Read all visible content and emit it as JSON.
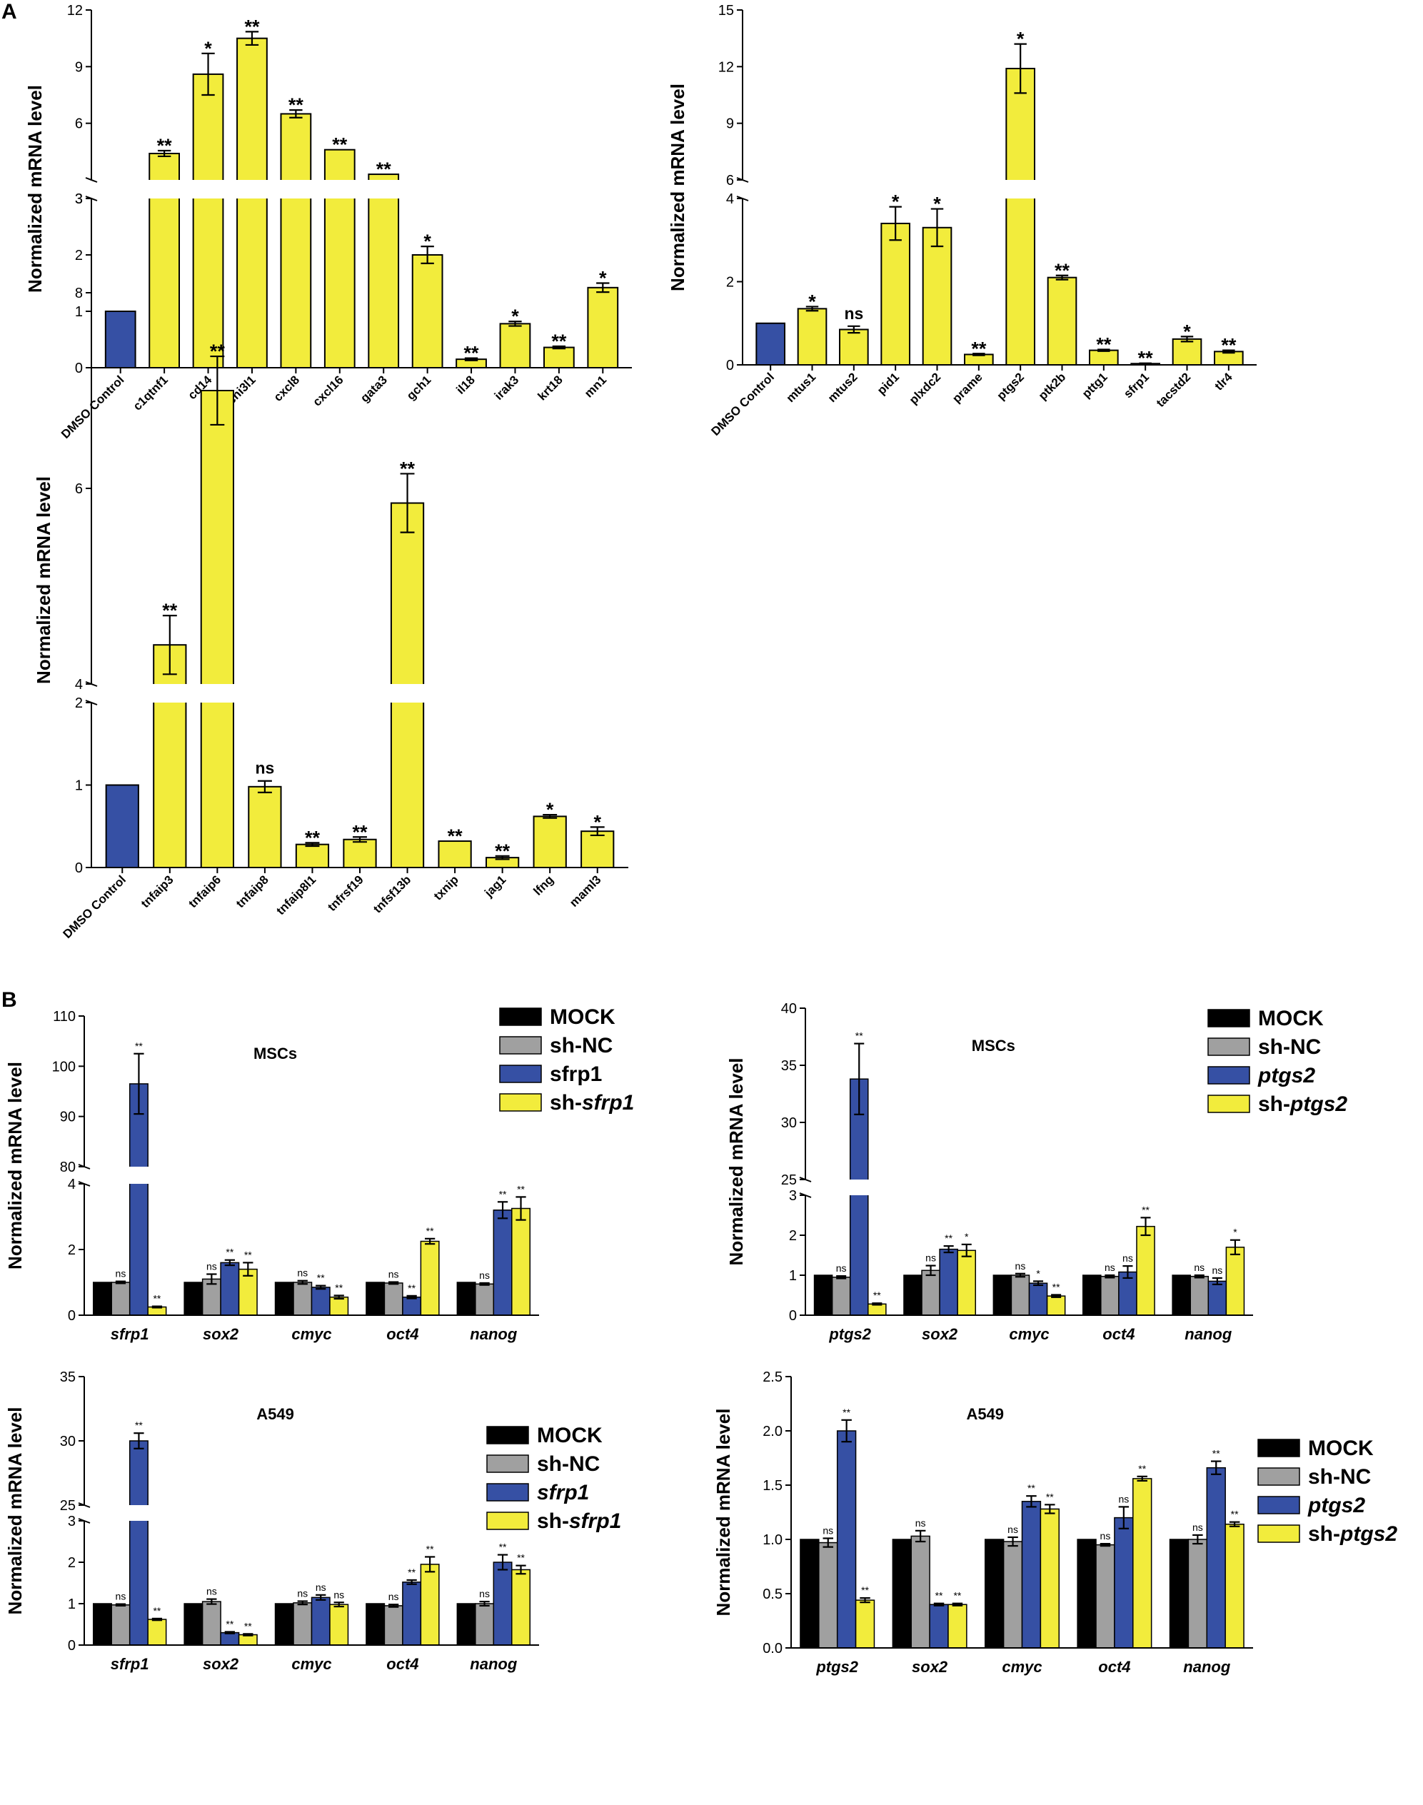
{
  "panels": {
    "A": {
      "label": "A"
    },
    "B": {
      "label": "B"
    }
  },
  "colors": {
    "control": "#3650a4",
    "treated": "#f2ec3c",
    "mock": "#000000",
    "sh_nc": "#a0a0a0",
    "overexpr": "#3650a4",
    "knockdown": "#f2ec3c"
  },
  "chart_data": [
    {
      "id": "A1",
      "type": "bar",
      "panel": "A",
      "ylabel": "Normalized mRNA level",
      "broken_axis": true,
      "lower_range": [
        0,
        3
      ],
      "upper_range": [
        3,
        12
      ],
      "lower_ticks": [
        0,
        1,
        2,
        3
      ],
      "upper_ticks": [
        3,
        6,
        9,
        12
      ],
      "categories": [
        "DMSO Control",
        "c1qtnf1",
        "cd14",
        "chi3l1",
        "cxcl8",
        "cxcl16",
        "gata3",
        "gch1",
        "il18",
        "irak3",
        "krt18",
        "mn1"
      ],
      "values": [
        1.0,
        4.4,
        8.6,
        10.5,
        6.5,
        4.6,
        3.3,
        2.0,
        0.15,
        0.78,
        0.36,
        1.42
      ],
      "errors": [
        0,
        0.15,
        1.1,
        0.35,
        0.2,
        0,
        0,
        0.15,
        0.02,
        0.04,
        0.02,
        0.08
      ],
      "significance": [
        "",
        "**",
        "*",
        "**",
        "**",
        "**",
        "**",
        "*",
        "**",
        "*",
        "**",
        "*"
      ]
    },
    {
      "id": "A2",
      "type": "bar",
      "panel": "A",
      "ylabel": "Normalized mRNA level",
      "broken_axis": true,
      "lower_range": [
        0,
        4
      ],
      "upper_range": [
        6,
        15
      ],
      "lower_ticks": [
        0,
        2,
        4
      ],
      "upper_ticks": [
        6,
        9,
        12,
        15
      ],
      "categories": [
        "DMSO Control",
        "mtus1",
        "mtus2",
        "pid1",
        "plxdc2",
        "prame",
        "ptgs2",
        "ptk2b",
        "pttg1",
        "sfrp1",
        "tacstd2",
        "tlr4"
      ],
      "values": [
        1.0,
        1.35,
        0.85,
        3.4,
        3.3,
        0.25,
        11.9,
        2.1,
        0.35,
        0.03,
        0.62,
        0.32
      ],
      "errors": [
        0,
        0.05,
        0.08,
        0.4,
        0.45,
        0.02,
        1.3,
        0.05,
        0.02,
        0.01,
        0.06,
        0.03
      ],
      "significance": [
        "",
        "*",
        "ns",
        "*",
        "*",
        "**",
        "*",
        "**",
        "**",
        "**",
        "*",
        "**"
      ]
    },
    {
      "id": "A3",
      "type": "bar",
      "panel": "A",
      "ylabel": "Normalized mRNA level",
      "broken_axis": true,
      "lower_range": [
        0,
        2
      ],
      "upper_range": [
        4,
        8
      ],
      "lower_ticks": [
        0,
        1,
        2
      ],
      "upper_ticks": [
        4,
        6,
        8
      ],
      "categories": [
        "DMSO Control",
        "tnfaip3",
        "tnfaip6",
        "tnfaip8",
        "tnfaip8l1",
        "tnfrsf19",
        "tnfsf13b",
        "txnip",
        "jag1",
        "lfng",
        "maml3"
      ],
      "values": [
        1.0,
        4.4,
        7.0,
        0.98,
        0.28,
        0.34,
        5.85,
        0.32,
        0.12,
        0.62,
        0.44
      ],
      "errors": [
        0,
        0.3,
        0.35,
        0.07,
        0.02,
        0.03,
        0.3,
        0,
        0.02,
        0.02,
        0.05
      ],
      "significance": [
        "",
        "**",
        "**",
        "ns",
        "**",
        "**",
        "**",
        "**",
        "**",
        "*",
        "*"
      ]
    },
    {
      "id": "B1",
      "type": "bar",
      "panel": "B",
      "title": "MSCs",
      "ylabel": "Normalized mRNA level",
      "broken_axis": true,
      "lower_range": [
        0,
        4
      ],
      "upper_range": [
        80,
        110
      ],
      "lower_ticks": [
        0,
        2,
        4
      ],
      "upper_ticks": [
        80,
        90,
        100,
        110
      ],
      "categories": [
        "sfrp1",
        "sox2",
        "cmyc",
        "oct4",
        "nanog"
      ],
      "series": [
        {
          "name": "MOCK",
          "values": [
            1.0,
            1.0,
            1.0,
            1.0,
            1.0
          ],
          "errors": [
            0,
            0,
            0,
            0,
            0
          ],
          "sig": [
            "",
            "",
            "",
            "",
            ""
          ]
        },
        {
          "name": "sh-NC",
          "values": [
            1.0,
            1.1,
            1.0,
            0.98,
            0.95
          ],
          "errors": [
            0.03,
            0.15,
            0.05,
            0.03,
            0.03
          ],
          "sig": [
            "ns",
            "ns",
            "ns",
            "ns",
            "ns"
          ]
        },
        {
          "name": "sfrp1",
          "values": [
            96.5,
            1.6,
            0.85,
            0.55,
            3.2
          ],
          "errors": [
            6,
            0.08,
            0.05,
            0.04,
            0.25
          ],
          "sig": [
            "**",
            "**",
            "**",
            "**",
            "**"
          ]
        },
        {
          "name": "sh-sfrp1",
          "values": [
            0.25,
            1.4,
            0.55,
            2.25,
            3.25
          ],
          "errors": [
            0.02,
            0.2,
            0.05,
            0.08,
            0.35
          ],
          "sig": [
            "**",
            "**",
            "**",
            "**",
            "**"
          ]
        }
      ],
      "legend": [
        {
          "prefix": "MOCK",
          "italic": ""
        },
        {
          "prefix": "sh-NC",
          "italic": ""
        },
        {
          "prefix": "sfrp1",
          "italic": ""
        },
        {
          "prefix": "sh-",
          "italic": "sfrp1"
        }
      ]
    },
    {
      "id": "B2",
      "type": "bar",
      "panel": "B",
      "title": "MSCs",
      "ylabel": "Normalized mRNA level",
      "broken_axis": true,
      "lower_range": [
        0,
        3
      ],
      "upper_range": [
        25,
        40
      ],
      "lower_ticks": [
        0,
        1,
        2,
        3
      ],
      "upper_ticks": [
        25,
        30,
        35,
        40
      ],
      "categories": [
        "ptgs2",
        "sox2",
        "cmyc",
        "oct4",
        "nanog"
      ],
      "series": [
        {
          "name": "MOCK",
          "values": [
            1.0,
            1.0,
            1.0,
            1.0,
            1.0
          ],
          "errors": [
            0,
            0,
            0,
            0,
            0
          ],
          "sig": [
            "",
            "",
            "",
            "",
            ""
          ]
        },
        {
          "name": "sh-NC",
          "values": [
            0.95,
            1.12,
            1.0,
            0.97,
            0.97
          ],
          "errors": [
            0.03,
            0.12,
            0.04,
            0.03,
            0.03
          ],
          "sig": [
            "ns",
            "ns",
            "ns",
            "ns",
            "ns"
          ]
        },
        {
          "name": "ptgs2",
          "values": [
            33.8,
            1.65,
            0.8,
            1.08,
            0.85
          ],
          "errors": [
            3.1,
            0.08,
            0.05,
            0.15,
            0.08
          ],
          "sig": [
            "**",
            "**",
            "*",
            "ns",
            "ns"
          ]
        },
        {
          "name": "sh-ptgs2",
          "values": [
            0.28,
            1.62,
            0.48,
            2.22,
            1.7
          ],
          "errors": [
            0.02,
            0.15,
            0.03,
            0.22,
            0.18
          ],
          "sig": [
            "**",
            "*",
            "**",
            "**",
            "*"
          ]
        }
      ],
      "legend": [
        {
          "prefix": "MOCK",
          "italic": ""
        },
        {
          "prefix": "sh-NC",
          "italic": ""
        },
        {
          "prefix": "",
          "italic": "ptgs2"
        },
        {
          "prefix": "sh-",
          "italic": "ptgs2"
        }
      ]
    },
    {
      "id": "B3",
      "type": "bar",
      "panel": "B",
      "title": "A549",
      "ylabel": "Normalized mRNA level",
      "broken_axis": true,
      "lower_range": [
        0,
        3
      ],
      "upper_range": [
        25,
        35
      ],
      "lower_ticks": [
        0,
        1,
        2,
        3
      ],
      "upper_ticks": [
        25,
        30,
        35
      ],
      "categories": [
        "sfrp1",
        "sox2",
        "cmyc",
        "oct4",
        "nanog"
      ],
      "series": [
        {
          "name": "MOCK",
          "values": [
            1.0,
            1.0,
            1.0,
            1.0,
            1.0
          ],
          "errors": [
            0,
            0,
            0,
            0,
            0
          ],
          "sig": [
            "",
            "",
            "",
            "",
            ""
          ]
        },
        {
          "name": "sh-NC",
          "values": [
            0.97,
            1.05,
            1.02,
            0.95,
            1.0
          ],
          "errors": [
            0.02,
            0.06,
            0.04,
            0.03,
            0.05
          ],
          "sig": [
            "ns",
            "ns",
            "ns",
            "ns",
            "ns"
          ]
        },
        {
          "name": "sfrp1",
          "values": [
            30.0,
            0.3,
            1.15,
            1.52,
            2.0
          ],
          "errors": [
            0.6,
            0.02,
            0.06,
            0.05,
            0.18
          ],
          "sig": [
            "**",
            "**",
            "ns",
            "**",
            "**"
          ]
        },
        {
          "name": "sh-sfrp1",
          "values": [
            0.62,
            0.25,
            0.98,
            1.95,
            1.82
          ],
          "errors": [
            0.02,
            0.02,
            0.05,
            0.18,
            0.1
          ],
          "sig": [
            "**",
            "**",
            "ns",
            "**",
            "**"
          ]
        }
      ],
      "legend": [
        {
          "prefix": "MOCK",
          "italic": ""
        },
        {
          "prefix": "sh-NC",
          "italic": ""
        },
        {
          "prefix": "",
          "italic": "sfrp1"
        },
        {
          "prefix": "sh-",
          "italic": "sfrp1"
        }
      ]
    },
    {
      "id": "B4",
      "type": "bar",
      "panel": "B",
      "title": "A549",
      "ylabel": "Normalized mRNA level",
      "broken_axis": false,
      "ylim": [
        0,
        2.5
      ],
      "ticks": [
        0.0,
        0.5,
        1.0,
        1.5,
        2.0,
        2.5
      ],
      "tick_labels": [
        "0.0",
        "0.5",
        "1.0",
        "1.5",
        "2.0",
        "2.5"
      ],
      "categories": [
        "ptgs2",
        "sox2",
        "cmyc",
        "oct4",
        "nanog"
      ],
      "series": [
        {
          "name": "MOCK",
          "values": [
            1.0,
            1.0,
            1.0,
            1.0,
            1.0
          ],
          "errors": [
            0,
            0,
            0,
            0,
            0
          ],
          "sig": [
            "",
            "",
            "",
            "",
            ""
          ]
        },
        {
          "name": "sh-NC",
          "values": [
            0.97,
            1.03,
            0.98,
            0.95,
            1.0
          ],
          "errors": [
            0.04,
            0.05,
            0.04,
            0.01,
            0.04
          ],
          "sig": [
            "ns",
            "ns",
            "ns",
            "ns",
            "ns"
          ]
        },
        {
          "name": "ptgs2",
          "values": [
            2.0,
            0.4,
            1.35,
            1.2,
            1.66
          ],
          "errors": [
            0.1,
            0.01,
            0.05,
            0.1,
            0.06
          ],
          "sig": [
            "**",
            "**",
            "**",
            "ns",
            "**"
          ]
        },
        {
          "name": "sh-ptgs2",
          "values": [
            0.44,
            0.4,
            1.28,
            1.56,
            1.14
          ],
          "errors": [
            0.02,
            0.01,
            0.04,
            0.02,
            0.02
          ],
          "sig": [
            "**",
            "**",
            "**",
            "**",
            "**"
          ]
        }
      ],
      "legend": [
        {
          "prefix": "MOCK",
          "italic": ""
        },
        {
          "prefix": "sh-NC",
          "italic": ""
        },
        {
          "prefix": "",
          "italic": "ptgs2"
        },
        {
          "prefix": "sh-",
          "italic": "ptgs2"
        }
      ]
    }
  ]
}
